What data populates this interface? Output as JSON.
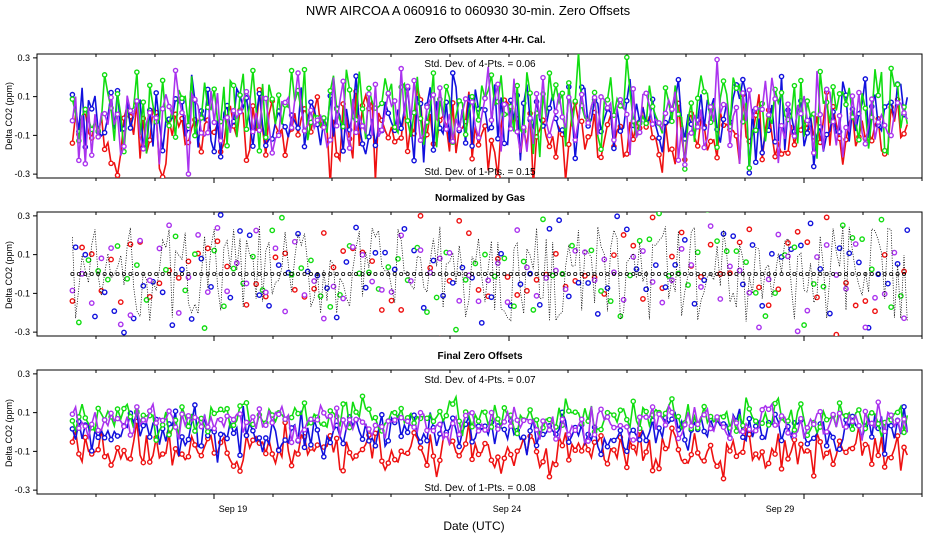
{
  "chart_data": {
    "type": "line",
    "title": "NWR   AIRCOA A   060916 to 060930   30-min. Zero Offsets",
    "xlabel": "Date (UTC)",
    "x_tick_labels": [
      "Sep 19",
      "Sep 24",
      "Sep 29"
    ],
    "x_tick_days": [
      19,
      24,
      29
    ],
    "xlim_days": [
      16,
      31
    ],
    "series_colors": {
      "red": "#ee1111",
      "blue": "#1111dd",
      "green": "#11dd11",
      "purple": "#aa33ee",
      "black": "#000000"
    },
    "panels": [
      {
        "title": "Zero Offsets After 4-Hr. Cal.",
        "ylabel": "Delta CO2 (ppm)",
        "ylim": [
          -0.32,
          0.32
        ],
        "yticks": [
          "-0.3",
          "-0.1",
          "0.1",
          "0.3"
        ],
        "ytick_values": [
          -0.3,
          -0.1,
          0.1,
          0.3
        ],
        "annotations": {
          "top": "Std. Dev. of 4-Pts. =  0.06",
          "bottom": "Std. Dev. of 1-Pts. =  0.15"
        },
        "series": [
          {
            "name": "red",
            "center": -0.09,
            "spread": 0.09
          },
          {
            "name": "blue",
            "center": -0.01,
            "spread": 0.1
          },
          {
            "name": "green",
            "center": 0.03,
            "spread": 0.1
          },
          {
            "name": "purple",
            "center": 0.0,
            "spread": 0.09
          }
        ]
      },
      {
        "title": "Normalized by Gas",
        "ylabel": "Delta CO2 (ppm)",
        "ylim": [
          -0.32,
          0.32
        ],
        "yticks": [
          "-0.3",
          "-0.1",
          "0.1",
          "0.3"
        ],
        "ytick_values": [
          -0.3,
          -0.1,
          0.1,
          0.3
        ],
        "annotations": {
          "top": "",
          "bottom": ""
        },
        "series": [
          {
            "name": "red",
            "center": 0.0,
            "spread": 0.14
          },
          {
            "name": "blue",
            "center": 0.0,
            "spread": 0.14
          },
          {
            "name": "green",
            "center": 0.0,
            "spread": 0.14
          },
          {
            "name": "purple",
            "center": 0.0,
            "spread": 0.12
          },
          {
            "name": "black",
            "center": 0.0,
            "spread": 0.0
          }
        ]
      },
      {
        "title": "Final Zero Offsets",
        "ylabel": "Delta CO2 (ppm)",
        "ylim": [
          -0.32,
          0.32
        ],
        "yticks": [
          "-0.3",
          "-0.1",
          "0.1",
          "0.3"
        ],
        "ytick_values": [
          -0.3,
          -0.1,
          0.1,
          0.3
        ],
        "annotations": {
          "top": "Std. Dev. of 4-Pts. =  0.07",
          "bottom": "Std. Dev. of 1-Pts. =  0.08"
        },
        "series": [
          {
            "name": "red",
            "center": -0.09,
            "spread": 0.05
          },
          {
            "name": "blue",
            "center": 0.0,
            "spread": 0.05
          },
          {
            "name": "green",
            "center": 0.07,
            "spread": 0.04
          },
          {
            "name": "purple",
            "center": 0.05,
            "spread": 0.04
          }
        ]
      }
    ]
  }
}
